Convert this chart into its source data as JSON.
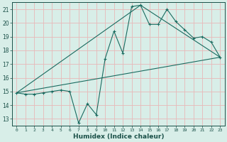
{
  "xlabel": "Humidex (Indice chaleur)",
  "bg_color": "#d8eee8",
  "grid_color": "#e8b8b8",
  "line_color": "#1a6b60",
  "tick_color": "#1a5048",
  "xlim": [
    -0.5,
    23.5
  ],
  "ylim": [
    12.5,
    21.5
  ],
  "yticks": [
    13,
    14,
    15,
    16,
    17,
    18,
    19,
    20,
    21
  ],
  "xticks": [
    0,
    1,
    2,
    3,
    4,
    5,
    6,
    7,
    8,
    9,
    10,
    11,
    12,
    13,
    14,
    15,
    16,
    17,
    18,
    19,
    20,
    21,
    22,
    23
  ],
  "line1_x": [
    0,
    1,
    2,
    3,
    4,
    5,
    6,
    7,
    8,
    9,
    10,
    11,
    12,
    13,
    14,
    15,
    16,
    17,
    18,
    19,
    20,
    21,
    22,
    23
  ],
  "line1_y": [
    14.9,
    14.8,
    14.8,
    14.9,
    15.0,
    15.1,
    15.0,
    12.7,
    14.1,
    13.3,
    17.4,
    19.4,
    17.8,
    21.2,
    21.3,
    19.9,
    19.9,
    21.0,
    20.1,
    19.5,
    18.9,
    19.0,
    18.6,
    17.5
  ],
  "line2_x": [
    0,
    23
  ],
  "line2_y": [
    14.9,
    17.5
  ],
  "line3_x": [
    0,
    14,
    23
  ],
  "line3_y": [
    14.9,
    21.3,
    17.5
  ]
}
